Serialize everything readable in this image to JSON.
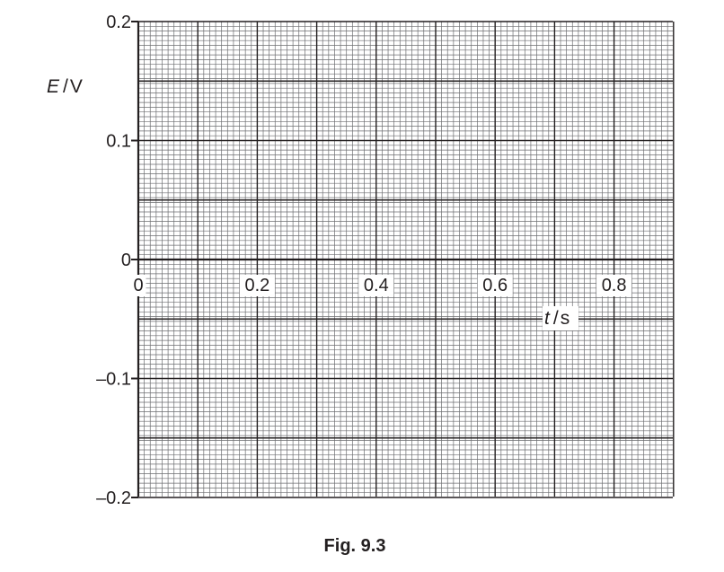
{
  "chart_data": {
    "type": "line",
    "title": "",
    "caption": "Fig. 9.3",
    "xlabel": {
      "symbol": "t",
      "unit": "s"
    },
    "ylabel": {
      "symbol": "E",
      "unit": "V"
    },
    "xlim": [
      0,
      0.9
    ],
    "ylim": [
      -0.2,
      0.2
    ],
    "x_ticks": [
      "0",
      "0.2",
      "0.4",
      "0.6",
      "0.8"
    ],
    "y_ticks": [
      "0.2",
      "0.1",
      "0",
      "–0.1",
      "–0.2"
    ],
    "x_tick_values": [
      0,
      0.2,
      0.4,
      0.6,
      0.8
    ],
    "y_tick_values": [
      0.2,
      0.1,
      0,
      -0.1,
      -0.2
    ],
    "grid": true,
    "grid_minor_step": {
      "x": 0.01,
      "y": 0.01
    },
    "grid_major_step": {
      "x": 0.1,
      "y": 0.05
    },
    "series": []
  }
}
